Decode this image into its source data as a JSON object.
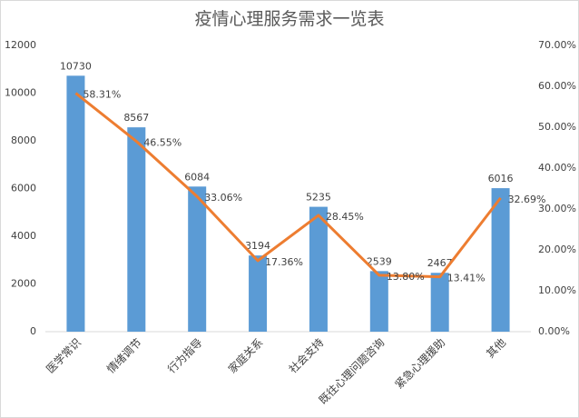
{
  "chart_data": {
    "type": "bar-line",
    "title": "疫情心理服务需求一览表",
    "categories": [
      "医学常识",
      "情绪调节",
      "行为指导",
      "家庭关系",
      "社会支持",
      "既往心理问题咨询",
      "紧急心理援助",
      "其他"
    ],
    "series": [
      {
        "type": "bar",
        "color": "#5b9bd5",
        "values": [
          10730,
          8567,
          6084,
          3194,
          5235,
          2539,
          2467,
          6016
        ]
      },
      {
        "type": "line",
        "axis": "y2",
        "color": "#ed7d31",
        "values": [
          58.31,
          46.55,
          33.06,
          17.36,
          28.45,
          13.8,
          13.41,
          32.69
        ],
        "value_labels": [
          "58.31%",
          "46.55%",
          "33.06%",
          "17.36%",
          "28.45%",
          "13.80%",
          "13.41%",
          "32.69%"
        ]
      }
    ],
    "ylim": [
      0,
      12000
    ],
    "yticks": [
      0,
      2000,
      4000,
      6000,
      8000,
      10000,
      12000
    ],
    "y2lim": [
      0,
      70
    ],
    "y2ticks": [
      {
        "value": 0,
        "label": "0.00%"
      },
      {
        "value": 10,
        "label": "10.00%"
      },
      {
        "value": 20,
        "label": "20.00%"
      },
      {
        "value": 30,
        "label": "30.00%"
      },
      {
        "value": 40,
        "label": "40.00%"
      },
      {
        "value": 50,
        "label": "50.00%"
      },
      {
        "value": 60,
        "label": "60.00%"
      },
      {
        "value": 70,
        "label": "70.00%"
      }
    ]
  }
}
